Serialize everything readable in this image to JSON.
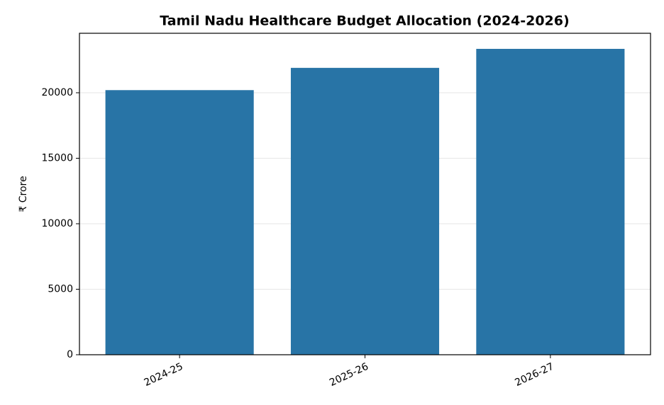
{
  "chart_data": {
    "type": "bar",
    "title": "Tamil Nadu Healthcare Budget Allocation (2024-2026)",
    "y_label": "₹ Crore",
    "categories": [
      "2024-25",
      "2025-26",
      "2026-27"
    ],
    "values": [
      20200,
      21900,
      23350
    ],
    "color": "#2874a6",
    "ylim": [
      0,
      24540
    ],
    "yticks": [
      0,
      5000,
      10000,
      15000,
      20000
    ],
    "grid": true
  }
}
